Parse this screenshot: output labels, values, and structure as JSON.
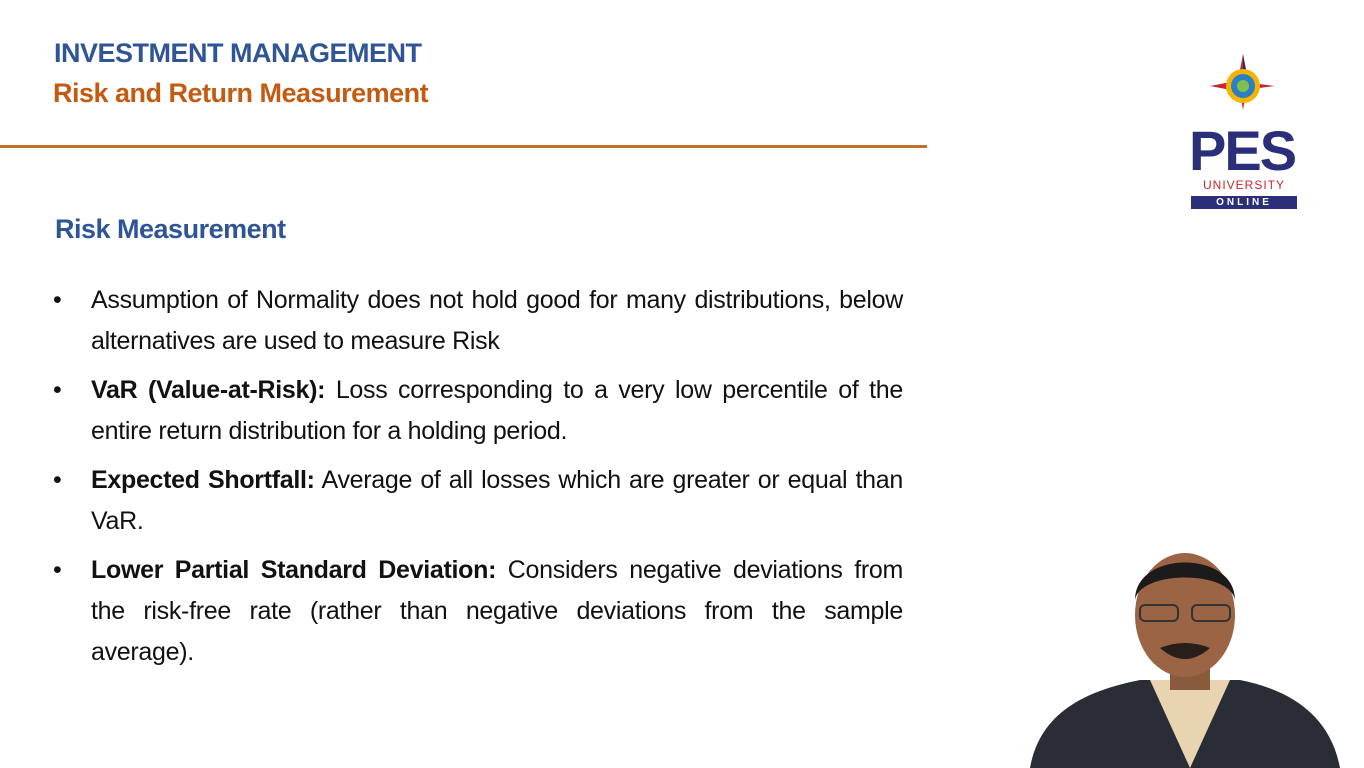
{
  "header": {
    "title": "INVESTMENT MANAGEMENT",
    "subtitle": "Risk and Return Measurement"
  },
  "logo": {
    "name": "PES",
    "line1": "UNIVERSITY",
    "line2": "ONLINE"
  },
  "section": {
    "heading": "Risk Measurement",
    "bullets": [
      {
        "text": "Assumption of Normality does not hold good for many distributions, below alternatives are used to measure Risk"
      },
      {
        "term": "VaR (Value-at-Risk):",
        "text": "Loss corresponding to a very low percentile of the entire return distribution for a holding period."
      },
      {
        "term": "Expected Shortfall:",
        "text": "Average of all losses which are greater or equal than VaR."
      },
      {
        "term": "Lower Partial Standard Deviation:",
        "text": "Considers negative deviations from the risk-free rate (rather than negative deviations from the sample average)."
      }
    ]
  }
}
